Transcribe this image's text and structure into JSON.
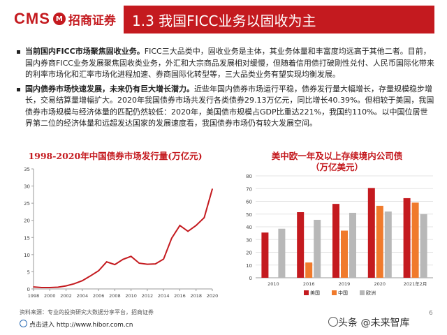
{
  "header": {
    "logo_cms": "CMS",
    "logo_mark": "M",
    "logo_cn": "招商证券",
    "title": "1.3 我国FICC业务以固收为主"
  },
  "bullets": [
    {
      "bold": "当前国内FICC市场聚焦固收业务。",
      "text": "FICC三大品类中，固收业务是主体，其业务体量和丰富度均远高于其他二者。目前，国内券商FICC业务发展聚焦固收类业务，外汇和大宗商品发展相对缓慢，但随着信用债打破刚性兑付、人民币国际化带来的利率市场化和汇率市场化进程加速、券商国际化转型等，三大品类业务有望实现均衡发展。"
    },
    {
      "bold": "国内债券市场快速发展，未来仍有巨大增长潜力。",
      "text": "近些年国内债券市场运行平稳，债券发行量大幅增长，存量规模稳步增长，交易结算量增幅扩大。2020年我国债券市场共发行各类债券29.13万亿元，同比增长40.39%。但相较于美国，我国债券市场规模与经济体量的匹配仍然较低：2020年，美国债市规模占GDP比重达221%，我国约110%。以中国位居世界第二位的经济体量和远超发达国家的发展速度看，我国债券市场仍有较大发展空间。"
    }
  ],
  "chart_data": [
    {
      "type": "line",
      "title": "1998-2020年中国债券市场发行量(万亿元)",
      "x": [
        1998,
        1999,
        2000,
        2001,
        2002,
        2003,
        2004,
        2005,
        2006,
        2007,
        2008,
        2009,
        2010,
        2011,
        2012,
        2013,
        2014,
        2015,
        2016,
        2017,
        2018,
        2019,
        2020
      ],
      "values": [
        0.6,
        0.4,
        0.4,
        0.5,
        0.9,
        1.5,
        2.4,
        3.8,
        5.3,
        7.9,
        7.1,
        8.6,
        9.5,
        7.5,
        7.2,
        7.3,
        8.7,
        14.8,
        18.5,
        16.8,
        18.5,
        20.8,
        29.13
      ],
      "xticks": [
        "1998",
        "2000",
        "2002",
        "2004",
        "2006",
        "2008",
        "2010",
        "2012",
        "2014",
        "2016",
        "2018",
        "2020"
      ],
      "yticks": [
        "0",
        "5",
        "10",
        "15",
        "20",
        "25",
        "30",
        "35"
      ],
      "ylim": [
        0,
        35
      ],
      "color": "#c41a1f"
    },
    {
      "type": "bar",
      "title": "美中欧一年及以上存续境内公司债",
      "subtitle": "（万亿美元）",
      "categories": [
        "2010",
        "2016",
        "2019",
        "2020",
        "2021年2月"
      ],
      "series": [
        {
          "name": "美国",
          "values": [
            35.5,
            51.5,
            58,
            70.5,
            62.5
          ],
          "color": "#c41a1f"
        },
        {
          "name": "中国",
          "values": [
            0,
            12,
            37,
            56.5,
            59
          ],
          "color": "#f07a2c"
        },
        {
          "name": "欧洲",
          "values": [
            38.5,
            45.5,
            51,
            52,
            50
          ],
          "color": "#b8b8b8"
        }
      ],
      "yticks": [
        "0",
        "10",
        "20",
        "30",
        "40",
        "50",
        "60",
        "70",
        "80"
      ],
      "ylim": [
        0,
        80
      ],
      "grid": true,
      "legend": "bottom"
    }
  ],
  "footer": {
    "source": "资料来源：专业的投资研究大数据分享平台，招商证券",
    "link": "点击进入 http://www.hibor.com.cn",
    "page": "6",
    "watermark": "头条 @未来智库"
  }
}
